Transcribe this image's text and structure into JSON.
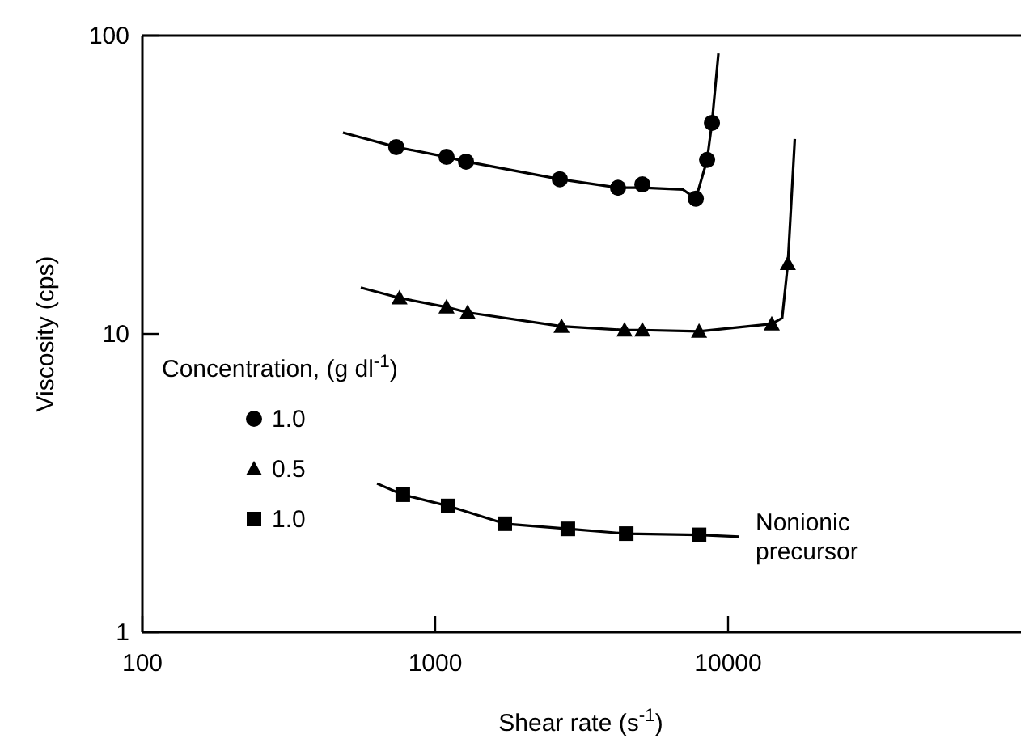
{
  "chart_data": {
    "type": "scatter",
    "xlabel": "Shear rate  (s$^{-1}$)",
    "ylabel": "Viscosity  (cps)",
    "legend_title": "Concentration, (g dl$^{-1}$)",
    "log": "xy",
    "xlim": [
      100,
      100000
    ],
    "xticks": [
      100,
      1000,
      10000
    ],
    "ylim": [
      1,
      100
    ],
    "yticks": [
      1,
      10,
      100
    ],
    "grid": false,
    "legend": "left",
    "series": [
      {
        "type": "line",
        "color": "#000000",
        "marker": "none",
        "x": [
          484,
          736,
          1093,
          1274,
          2663,
          4210,
          5096,
          7000,
          7760,
          8480,
          8810,
          9270
        ],
        "values": [
          47.3,
          42.3,
          39.2,
          37.8,
          33.0,
          30.9,
          30.9,
          30.5,
          28.4,
          38.3,
          51.0,
          87.1
        ]
      },
      {
        "type": "line",
        "color": "#000000",
        "marker": "none",
        "x": [
          557,
          755,
          1093,
          1290,
          2700,
          4430,
          5096,
          7960,
          14100,
          15300,
          16000,
          16900
        ],
        "values": [
          14.3,
          13.2,
          12.3,
          11.8,
          10.6,
          10.3,
          10.3,
          10.2,
          10.8,
          11.3,
          17.2,
          45.0
        ]
      },
      {
        "type": "line",
        "color": "#000000",
        "marker": "none",
        "x": [
          633,
          775,
          1107,
          1728,
          2837,
          4490,
          7960,
          10930
        ],
        "values": [
          3.15,
          2.89,
          2.65,
          2.31,
          2.22,
          2.14,
          2.12,
          2.09
        ]
      },
      {
        "name": "1.0",
        "color": "#000000",
        "marker": "circle",
        "x": [
          736,
          1093,
          1274,
          2663,
          4210,
          5096,
          7760,
          8480,
          8810
        ],
        "values": [
          42.3,
          39.2,
          37.8,
          33.0,
          30.9,
          31.7,
          28.4,
          38.3,
          51.0
        ]
      },
      {
        "name": "0.5",
        "color": "#000000",
        "marker": "triangle",
        "x": [
          755,
          1093,
          1290,
          2700,
          4430,
          5096,
          7960,
          14100,
          16000
        ],
        "values": [
          13.2,
          12.3,
          11.8,
          10.6,
          10.3,
          10.3,
          10.2,
          10.8,
          17.2
        ]
      },
      {
        "name": "1.0",
        "color": "#000000",
        "marker": "square",
        "x": [
          775,
          1107,
          1728,
          2837,
          4490,
          7960
        ],
        "values": [
          2.89,
          2.65,
          2.31,
          2.22,
          2.14,
          2.12
        ]
      }
    ],
    "annotations": [
      {
        "text": "Nonionic precursor",
        "x": 10930,
        "y": 2.09
      }
    ]
  }
}
